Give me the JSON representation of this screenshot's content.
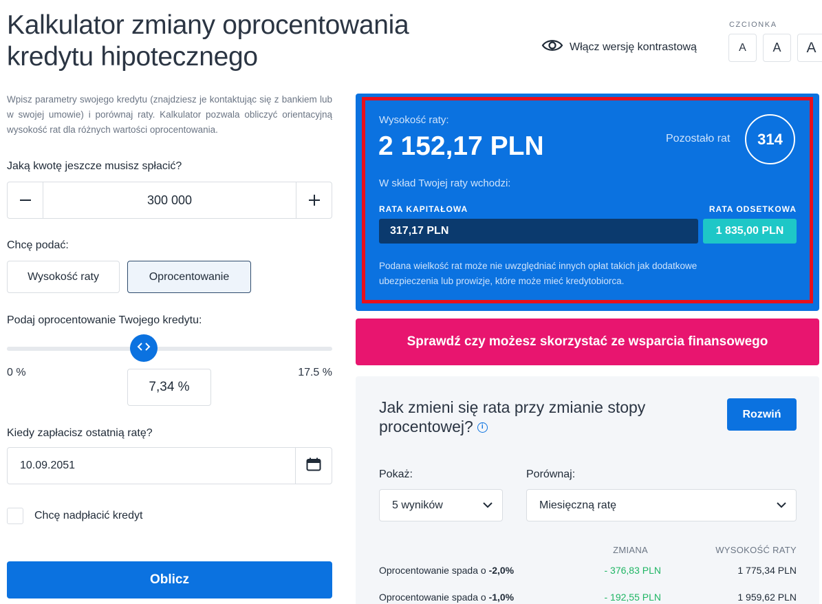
{
  "header": {
    "title_line1": "Kalkulator zmiany oprocentowania",
    "title_line2": "kredytu hipotecznego",
    "contrast_label": "Włącz wersję kontrastową",
    "font_label": "CZCIONKA",
    "font_buttons": [
      "A",
      "A",
      "A"
    ]
  },
  "form": {
    "intro": "Wpisz parametry swojego kredytu (znajdziesz je kontaktując się z bankiem lub w swojej umowie) i porównaj raty. Kalkulator pozwala obliczyć orientacyjną wysokość rat dla różnych wartości oprocentowania.",
    "amount_label": "Jaką kwotę jeszcze musisz spłacić?",
    "amount_value": "300 000",
    "give_label": "Chcę podać:",
    "option_installment": "Wysokość raty",
    "option_interest": "Oprocentowanie",
    "interest_label": "Podaj oprocentowanie Twojego kredytu:",
    "slider_min": "0 %",
    "slider_max": "17.5 %",
    "slider_fraction": 0.42,
    "interest_value": "7,34 %",
    "last_payment_label": "Kiedy zapłacisz ostatnią ratę?",
    "last_payment_value": "10.09.2051",
    "overpay_label": "Chcę nadpłacić kredyt",
    "calculate_label": "Oblicz"
  },
  "result": {
    "installment_label": "Wysokość raty:",
    "installment_value": "2 152,17 PLN",
    "remaining_label": "Pozostało rat",
    "remaining_value": "314",
    "breakdown_label": "W skład Twojej raty wchodzi:",
    "capital_label": "RATA KAPITAŁOWA",
    "capital_value": "317,17 PLN",
    "interest_label": "RATA ODSETKOWA",
    "interest_value": "1 835,00 PLN",
    "note": "Podana wielkość rat może nie uwzględniać innych opłat takich jak dodatkowe ubezpieczenia lub prowizje, które może mieć kredytobiorca."
  },
  "support_button": "Sprawdź czy możesz skorzystać ze wsparcia finansowego",
  "change": {
    "title": "Jak zmieni się rata przy zmianie stopy procentowej?",
    "expand_label": "Rozwiń",
    "show_label": "Pokaż:",
    "show_value": "5 wyników",
    "compare_label": "Porównaj:",
    "compare_value": "Miesięczną ratę",
    "col_change": "ZMIANA",
    "col_amount": "WYSOKOŚĆ RATY",
    "rows": [
      {
        "desc": "Oprocentowanie spada o ",
        "delta": "-2,0%",
        "change": "- 376,83 PLN",
        "amount": "1 775,34 PLN"
      },
      {
        "desc": "Oprocentowanie spada o ",
        "delta": "-1,0%",
        "change": "- 192,55 PLN",
        "amount": "1 959,62 PLN"
      }
    ]
  },
  "colors": {
    "accent": "#0b72e0",
    "capital": "#0b3a6e",
    "interest": "#1ec7c7",
    "support": "#e8156f",
    "highlight_frame": "#e8101c",
    "decrease": "#1eb563"
  }
}
